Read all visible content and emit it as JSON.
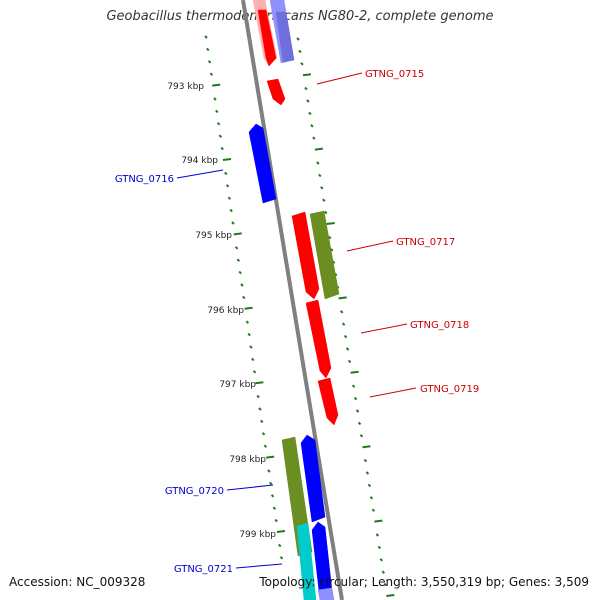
{
  "title": "Geobacillus thermodenitrificans NG80-2, complete genome",
  "footer": {
    "accession": "Accession: NC_009328",
    "summary": "Topology: circular; Length: 3,550,319 bp; Genes: 3,509"
  },
  "colors": {
    "backbone": "#808080",
    "ticks": "#1f7a1f",
    "forward_label": "#cc0000",
    "reverse_label": "#0000cc",
    "gene_red": "#ff0000",
    "gene_blue": "#0000ff",
    "gene_olive": "#6b8e23",
    "gene_cyan": "#00cccc",
    "gene_light_red": "#ffb0b0",
    "gene_light_blue": "#9090ff"
  },
  "scale_labels": [
    {
      "name": "scale-label-793",
      "text": "793 kbp"
    },
    {
      "name": "scale-label-794",
      "text": "794 kbp"
    },
    {
      "name": "scale-label-795",
      "text": "795 kbp"
    },
    {
      "name": "scale-label-796",
      "text": "796 kbp"
    },
    {
      "name": "scale-label-797",
      "text": "797 kbp"
    },
    {
      "name": "scale-label-798",
      "text": "798 kbp"
    },
    {
      "name": "scale-label-799",
      "text": "799 kbp"
    }
  ],
  "gene_labels": [
    {
      "id": "gtng-0715",
      "text": "GTNG_0715",
      "strand": "forward"
    },
    {
      "id": "gtng-0716",
      "text": "GTNG_0716",
      "strand": "reverse"
    },
    {
      "id": "gtng-0717",
      "text": "GTNG_0717",
      "strand": "forward"
    },
    {
      "id": "gtng-0718",
      "text": "GTNG_0718",
      "strand": "forward"
    },
    {
      "id": "gtng-0719",
      "text": "GTNG_0719",
      "strand": "forward"
    },
    {
      "id": "gtng-0720",
      "text": "GTNG_0720",
      "strand": "reverse"
    },
    {
      "id": "gtng-0721",
      "text": "GTNG_0721",
      "strand": "reverse"
    }
  ]
}
